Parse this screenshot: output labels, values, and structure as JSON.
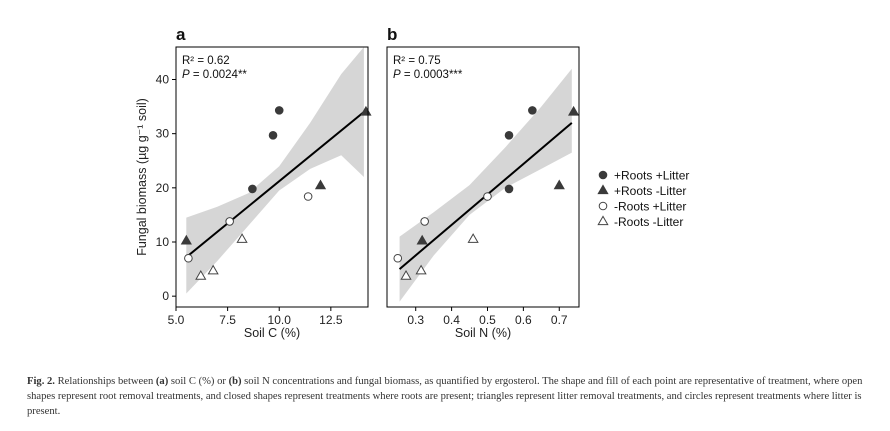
{
  "chart_data": [
    {
      "type": "scatter",
      "panel": "a",
      "xlabel": "Soil C (%)",
      "ylabel": "Fungal biomass (µg g⁻¹ soil)",
      "xlim": [
        5.0,
        14.3
      ],
      "ylim": [
        -2,
        46
      ],
      "xticks": [
        5.0,
        7.5,
        10.0,
        12.5
      ],
      "xtick_labels": [
        "5.0",
        "7.5",
        "10.0",
        "12.5"
      ],
      "yticks": [
        0,
        10,
        20,
        30,
        40
      ],
      "ytick_labels": [
        "0",
        "10",
        "20",
        "30",
        "40"
      ],
      "stats": {
        "r2": "R² = 0.62",
        "p_label": "P",
        "p_value": " = 0.0024**"
      },
      "regression": {
        "x": [
          5.5,
          14.1
        ],
        "y": [
          7.2,
          34.0
        ]
      },
      "ci_upper": {
        "x": [
          5.5,
          7.0,
          8.5,
          10.0,
          11.5,
          13.0,
          14.1
        ],
        "y": [
          14.5,
          16.5,
          19.0,
          24.0,
          32.0,
          41.0,
          46.0
        ]
      },
      "ci_lower": {
        "x": [
          5.5,
          7.0,
          8.5,
          10.0,
          11.5,
          13.0,
          14.1
        ],
        "y": [
          0.5,
          6.5,
          13.0,
          19.5,
          23.5,
          26.0,
          22.0
        ]
      },
      "points": [
        {
          "x": 9.7,
          "y": 29.7,
          "group": "+Roots +Litter"
        },
        {
          "x": 10.0,
          "y": 34.3,
          "group": "+Roots +Litter"
        },
        {
          "x": 8.7,
          "y": 19.8,
          "group": "+Roots +Litter"
        },
        {
          "x": 5.5,
          "y": 10.2,
          "group": "+Roots -Litter"
        },
        {
          "x": 12.0,
          "y": 20.4,
          "group": "+Roots -Litter"
        },
        {
          "x": 14.2,
          "y": 34.0,
          "group": "+Roots -Litter"
        },
        {
          "x": 5.6,
          "y": 7.0,
          "group": "-Roots +Litter"
        },
        {
          "x": 7.6,
          "y": 13.8,
          "group": "-Roots +Litter"
        },
        {
          "x": 11.4,
          "y": 18.4,
          "group": "-Roots +Litter"
        },
        {
          "x": 6.2,
          "y": 3.7,
          "group": "-Roots -Litter"
        },
        {
          "x": 6.8,
          "y": 4.7,
          "group": "-Roots -Litter"
        },
        {
          "x": 8.2,
          "y": 10.5,
          "group": "-Roots -Litter"
        }
      ]
    },
    {
      "type": "scatter",
      "panel": "b",
      "xlabel": "Soil N (%)",
      "ylabel": "",
      "xlim": [
        0.22,
        0.755
      ],
      "ylim": [
        -2,
        46
      ],
      "xticks": [
        0.3,
        0.4,
        0.5,
        0.6,
        0.7
      ],
      "xtick_labels": [
        "0.3",
        "0.4",
        "0.5",
        "0.6",
        "0.7"
      ],
      "yticks": [],
      "ytick_labels": [],
      "stats": {
        "r2": "R² = 0.75",
        "p_label": "P",
        "p_value": " = 0.0003***"
      },
      "regression": {
        "x": [
          0.255,
          0.735
        ],
        "y": [
          5.0,
          32.0
        ]
      },
      "ci_upper": {
        "x": [
          0.255,
          0.35,
          0.45,
          0.55,
          0.65,
          0.735
        ],
        "y": [
          11.0,
          15.5,
          20.5,
          27.5,
          35.0,
          42.0
        ]
      },
      "ci_lower": {
        "x": [
          0.255,
          0.35,
          0.45,
          0.55,
          0.65,
          0.735
        ],
        "y": [
          -1.0,
          7.5,
          15.0,
          20.0,
          23.5,
          26.5
        ]
      },
      "points": [
        {
          "x": 0.56,
          "y": 29.7,
          "group": "+Roots +Litter"
        },
        {
          "x": 0.625,
          "y": 34.3,
          "group": "+Roots +Litter"
        },
        {
          "x": 0.56,
          "y": 19.8,
          "group": "+Roots +Litter"
        },
        {
          "x": 0.318,
          "y": 10.2,
          "group": "+Roots -Litter"
        },
        {
          "x": 0.7,
          "y": 20.4,
          "group": "+Roots -Litter"
        },
        {
          "x": 0.74,
          "y": 34.0,
          "group": "+Roots -Litter"
        },
        {
          "x": 0.25,
          "y": 7.0,
          "group": "-Roots +Litter"
        },
        {
          "x": 0.325,
          "y": 13.8,
          "group": "-Roots +Litter"
        },
        {
          "x": 0.5,
          "y": 18.4,
          "group": "-Roots +Litter"
        },
        {
          "x": 0.273,
          "y": 3.7,
          "group": "-Roots -Litter"
        },
        {
          "x": 0.315,
          "y": 4.7,
          "group": "-Roots -Litter"
        },
        {
          "x": 0.46,
          "y": 10.5,
          "group": "-Roots -Litter"
        }
      ]
    }
  ],
  "legend": [
    {
      "label": "+Roots +Litter",
      "shape": "circle",
      "filled": true
    },
    {
      "label": "+Roots -Litter",
      "shape": "triangle",
      "filled": true
    },
    {
      "label": "-Roots +Litter",
      "shape": "circle",
      "filled": false
    },
    {
      "label": "-Roots -Litter",
      "shape": "triangle",
      "filled": false
    }
  ],
  "colors": {
    "filled_marker": "#3a3a3a",
    "ci_band": "#d6d6d6",
    "line": "#000000"
  },
  "caption": {
    "fig_label": "Fig. 2.",
    "text_1": " Relationships between ",
    "a_ref": "(a)",
    "text_2": " soil C (%) or ",
    "b_ref": "(b)",
    "text_3": " soil N concentrations and fungal biomass, as quantified by ergosterol. The shape and fill of each point are representative of treatment, where open shapes represent root removal treatments, and closed shapes represent treatments where roots are present; triangles represent litter removal treatments, and circles represent treatments where litter is present."
  }
}
